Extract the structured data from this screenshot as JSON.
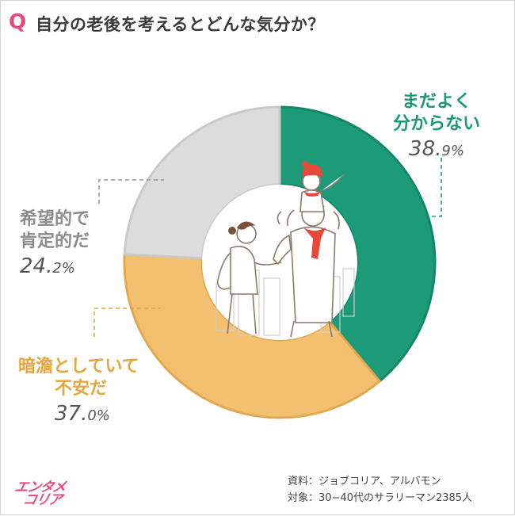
{
  "header": {
    "q_mark": "Q",
    "question": "自分の老後を考えるとどんな気分か？"
  },
  "chart_data": {
    "type": "pie",
    "title": "自分の老後を考えるとどんな気分か？",
    "slices": [
      {
        "label": "まだよく分からない",
        "value": 38.9,
        "color": "#1d9a78"
      },
      {
        "label": "暗澹としていて不安だ",
        "value": 37.0,
        "color": "#f3c070"
      },
      {
        "label": "希望的で肯定的だ",
        "value": 24.2,
        "color": "#dcdcdc"
      }
    ]
  },
  "labels": {
    "green_line1": "まだよく",
    "green_line2": "分からない",
    "green_int": "38.",
    "green_dec": "9%",
    "grey_line1": "希望的で",
    "grey_line2": "肯定的だ",
    "grey_int": "24.",
    "grey_dec": "2%",
    "orange_line1": "暗澹としていて",
    "orange_line2": "不安だ",
    "orange_int": "37.",
    "orange_dec": "0%"
  },
  "source": {
    "line1": "資料：ジョブコリア、アルバモン",
    "line2": "対象：30−40代のサラリーマン2385人"
  },
  "logo": {
    "line1": "エンタメ",
    "line2": "コリア"
  }
}
